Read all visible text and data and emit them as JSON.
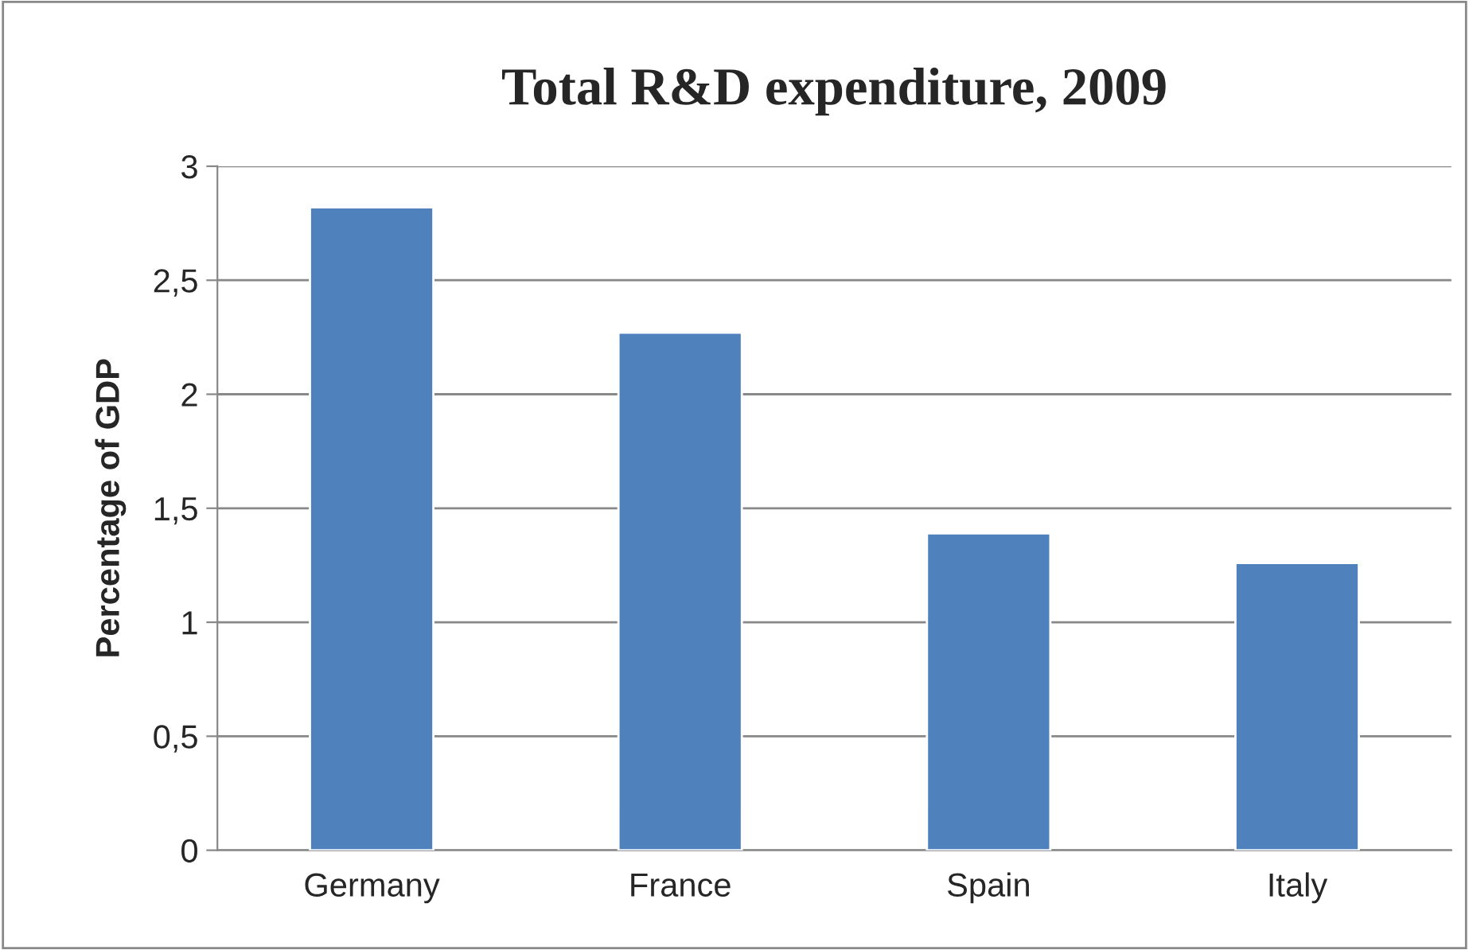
{
  "chart_data": {
    "type": "bar",
    "title": "Total R&D expenditure, 2009",
    "ylabel": "Percentage of GDP",
    "categories": [
      "Germany",
      "France",
      "Spain",
      "Italy"
    ],
    "values": [
      2.82,
      2.27,
      1.39,
      1.26
    ],
    "color": "#4f81bd",
    "ylim": [
      0,
      3
    ],
    "yticks": [
      0,
      {
        "value": 0.5,
        "label": "0,5"
      },
      1,
      {
        "value": 1.5,
        "label": "1,5"
      },
      2,
      {
        "value": 2.5,
        "label": "2,5"
      },
      3
    ],
    "grid": "y",
    "legend": false
  }
}
